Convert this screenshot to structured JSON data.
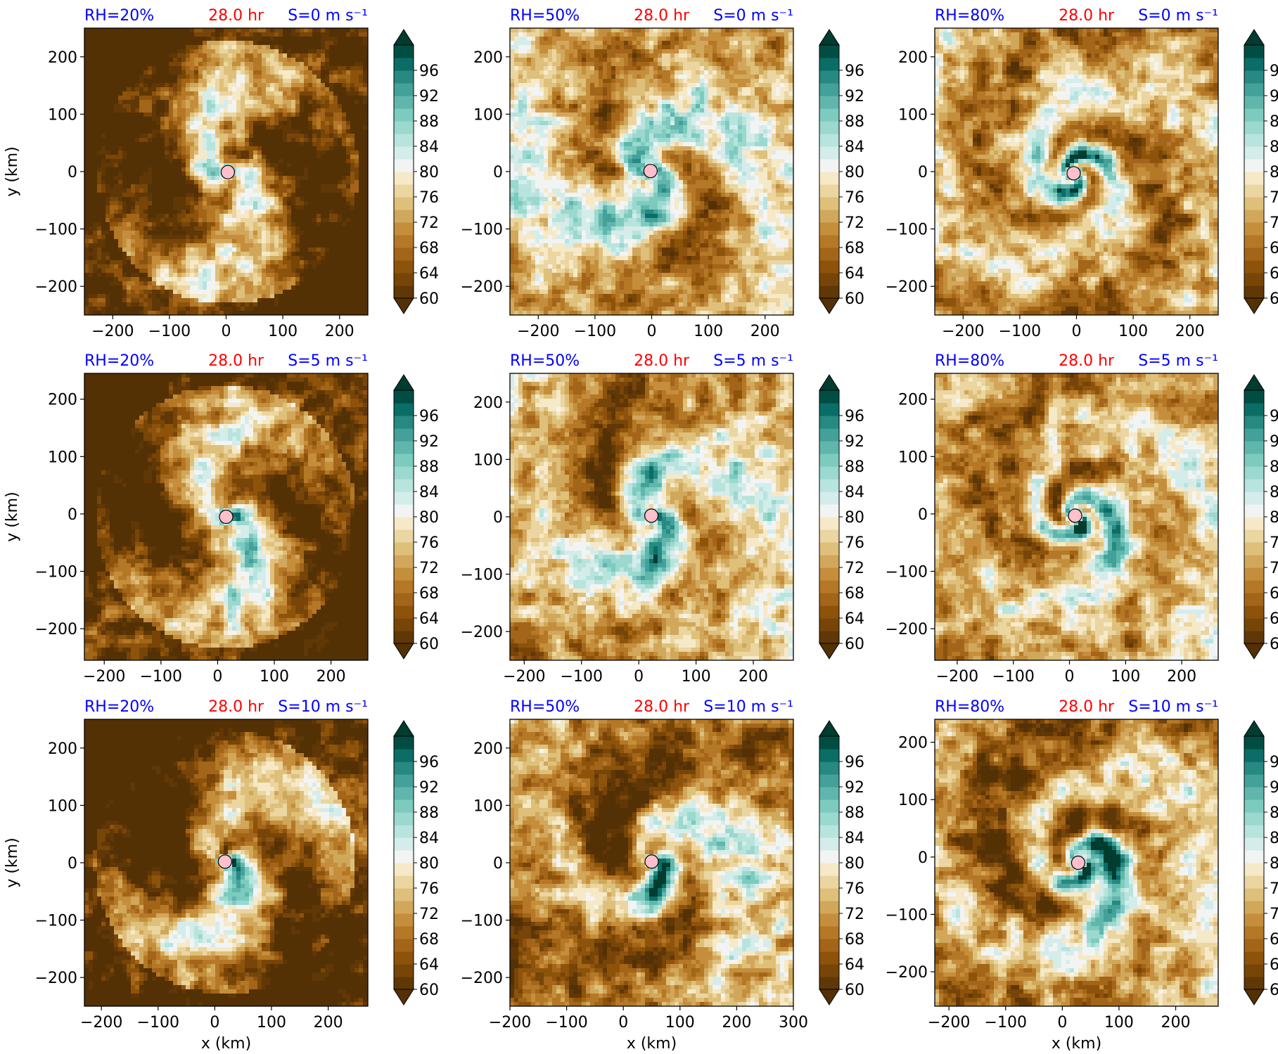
{
  "figure": {
    "colorbar_ticks": [
      "60",
      "64",
      "68",
      "72",
      "76",
      "80",
      "84",
      "88",
      "92",
      "96"
    ],
    "colors": {
      "title_left": "#0000ff",
      "title_center": "#ff0000",
      "title_right": "#0000ff",
      "center_marker": "#ffc0cb"
    },
    "colorbar_levels": [
      60,
      62,
      64,
      66,
      68,
      70,
      72,
      74,
      76,
      78,
      80,
      82,
      84,
      86,
      88,
      90,
      92,
      94,
      96,
      98
    ],
    "colormap": "BrBG"
  },
  "chart_data": [
    {
      "type": "heatmap",
      "title_left": "RH=20%",
      "title_center": "28.0 hr",
      "title_right": "S=0 m s⁻¹",
      "xlabel": "",
      "ylabel": "y (km)",
      "xlim": [
        -250,
        250
      ],
      "ylim": [
        -250,
        250
      ],
      "xticks": [
        "−200",
        "−100",
        "0",
        "100",
        "200"
      ],
      "xtick_values": [
        -200,
        -100,
        0,
        100,
        200
      ],
      "yticks": [
        "−200",
        "−100",
        "0",
        "100",
        "200"
      ],
      "ytick_values": [
        -200,
        -100,
        0,
        100,
        200
      ],
      "center": [
        3,
        -1
      ],
      "mean_rh": 66,
      "ring_radius": 140,
      "swirl": 0.5,
      "asym": 0.0,
      "asym_dir": 0
    },
    {
      "type": "heatmap",
      "title_left": "RH=50%",
      "title_center": "28.0 hr",
      "title_right": "S=0 m s⁻¹",
      "xlabel": "",
      "ylabel": "",
      "xlim": [
        -250,
        250
      ],
      "ylim": [
        -250,
        250
      ],
      "xticks": [
        "−200",
        "−100",
        "0",
        "100",
        "200"
      ],
      "xtick_values": [
        -200,
        -100,
        0,
        100,
        200
      ],
      "yticks": [
        "−200",
        "−100",
        "0",
        "100",
        "200"
      ],
      "ytick_values": [
        -200,
        -100,
        0,
        100,
        200
      ],
      "center": [
        -2,
        1
      ],
      "mean_rh": 75,
      "ring_radius": 90,
      "swirl": 0.7,
      "asym": 0.0,
      "asym_dir": 0
    },
    {
      "type": "heatmap",
      "title_left": "RH=80%",
      "title_center": "28.0 hr",
      "title_right": "S=0 m s⁻¹",
      "xlabel": "",
      "ylabel": "",
      "xlim": [
        -250,
        250
      ],
      "ylim": [
        -250,
        250
      ],
      "xticks": [
        "−200",
        "−100",
        "0",
        "100",
        "200"
      ],
      "xtick_values": [
        -200,
        -100,
        0,
        100,
        200
      ],
      "yticks": [
        "−200",
        "−100",
        "0",
        "100",
        "200"
      ],
      "ytick_values": [
        -200,
        -100,
        0,
        100,
        200
      ],
      "center": [
        -5,
        -3
      ],
      "mean_rh": 72,
      "ring_radius": 40,
      "swirl": 1.2,
      "asym": 0.0,
      "asym_dir": 0
    },
    {
      "type": "heatmap",
      "title_left": "RH=20%",
      "title_center": "28.0 hr",
      "title_right": "S=5 m s⁻¹",
      "xlabel": "",
      "ylabel": "y (km)",
      "xlim": [
        -235,
        265
      ],
      "ylim": [
        -255,
        245
      ],
      "xticks": [
        "−200",
        "−100",
        "0",
        "100",
        "200"
      ],
      "xtick_values": [
        -200,
        -100,
        0,
        100,
        200
      ],
      "yticks": [
        "−200",
        "−100",
        "0",
        "100",
        "200"
      ],
      "ytick_values": [
        -200,
        -100,
        0,
        100,
        200
      ],
      "center": [
        15,
        -5
      ],
      "mean_rh": 67,
      "ring_radius": 130,
      "swirl": 0.5,
      "asym": 0.5,
      "asym_dir": -0.6
    },
    {
      "type": "heatmap",
      "title_left": "RH=50%",
      "title_center": "28.0 hr",
      "title_right": "S=5 m s⁻¹",
      "xlabel": "",
      "ylabel": "",
      "xlim": [
        -225,
        270
      ],
      "ylim": [
        -250,
        250
      ],
      "xticks": [
        "−200",
        "−100",
        "0",
        "100",
        "200"
      ],
      "xtick_values": [
        -200,
        -100,
        0,
        100,
        200
      ],
      "yticks": [
        "−200",
        "−100",
        "0",
        "100",
        "200"
      ],
      "ytick_values": [
        -200,
        -100,
        0,
        100,
        200
      ],
      "center": [
        22,
        2
      ],
      "mean_rh": 74,
      "ring_radius": 80,
      "swirl": 0.7,
      "asym": 0.5,
      "asym_dir": -0.6
    },
    {
      "type": "heatmap",
      "title_left": "RH=80%",
      "title_center": "28.0 hr",
      "title_right": "S=5 m s⁻¹",
      "xlabel": "",
      "ylabel": "",
      "xlim": [
        -240,
        265
      ],
      "ylim": [
        -255,
        245
      ],
      "xticks": [
        "−200",
        "−100",
        "0",
        "100",
        "200"
      ],
      "xtick_values": [
        -200,
        -100,
        0,
        100,
        200
      ],
      "yticks": [
        "−200",
        "−100",
        "0",
        "100",
        "200"
      ],
      "ytick_values": [
        -200,
        -100,
        0,
        100,
        200
      ],
      "center": [
        10,
        -3
      ],
      "mean_rh": 73,
      "ring_radius": 50,
      "swirl": 1.2,
      "asym": 0.6,
      "asym_dir": -0.6
    },
    {
      "type": "heatmap",
      "title_left": "RH=20%",
      "title_center": "28.0 hr",
      "title_right": "S=10 m s⁻¹",
      "xlabel": "x (km)",
      "ylabel": "y (km)",
      "xlim": [
        -230,
        270
      ],
      "ylim": [
        -250,
        250
      ],
      "xticks": [
        "−200",
        "−100",
        "0",
        "100",
        "200"
      ],
      "xtick_values": [
        -200,
        -100,
        0,
        100,
        200
      ],
      "yticks": [
        "−200",
        "−100",
        "0",
        "100",
        "200"
      ],
      "ytick_values": [
        -200,
        -100,
        0,
        100,
        200
      ],
      "center": [
        18,
        2
      ],
      "mean_rh": 66,
      "ring_radius": 130,
      "swirl": 0.6,
      "asym": 0.9,
      "asym_dir": -0.5
    },
    {
      "type": "heatmap",
      "title_left": "RH=50%",
      "title_center": "28.0 hr",
      "title_right": "S=10 m s⁻¹",
      "xlabel": "x (km)",
      "ylabel": "",
      "xlim": [
        -200,
        300
      ],
      "ylim": [
        -250,
        250
      ],
      "xticks": [
        "−200",
        "−100",
        "0",
        "100",
        "200",
        "300"
      ],
      "xtick_values": [
        -200,
        -100,
        0,
        100,
        200,
        300
      ],
      "yticks": [
        "−200",
        "−100",
        "0",
        "100",
        "200"
      ],
      "ytick_values": [
        -200,
        -100,
        0,
        100,
        200
      ],
      "center": [
        50,
        2
      ],
      "mean_rh": 70,
      "ring_radius": 90,
      "swirl": 0.8,
      "asym": 0.9,
      "asym_dir": -0.5
    },
    {
      "type": "heatmap",
      "title_left": "RH=80%",
      "title_center": "28.0 hr",
      "title_right": "S=10 m s⁻¹",
      "xlabel": "x (km)",
      "ylabel": "",
      "xlim": [
        -225,
        275
      ],
      "ylim": [
        -260,
        240
      ],
      "xticks": [
        "−200",
        "−100",
        "0",
        "100",
        "200"
      ],
      "xtick_values": [
        -200,
        -100,
        0,
        100,
        200
      ],
      "yticks": [
        "−200",
        "−100",
        "0",
        "100",
        "200"
      ],
      "ytick_values": [
        -200,
        -100,
        0,
        100,
        200
      ],
      "center": [
        28,
        -10
      ],
      "mean_rh": 72,
      "ring_radius": 80,
      "swirl": 1.2,
      "asym": 1.0,
      "asym_dir": -0.5
    }
  ]
}
